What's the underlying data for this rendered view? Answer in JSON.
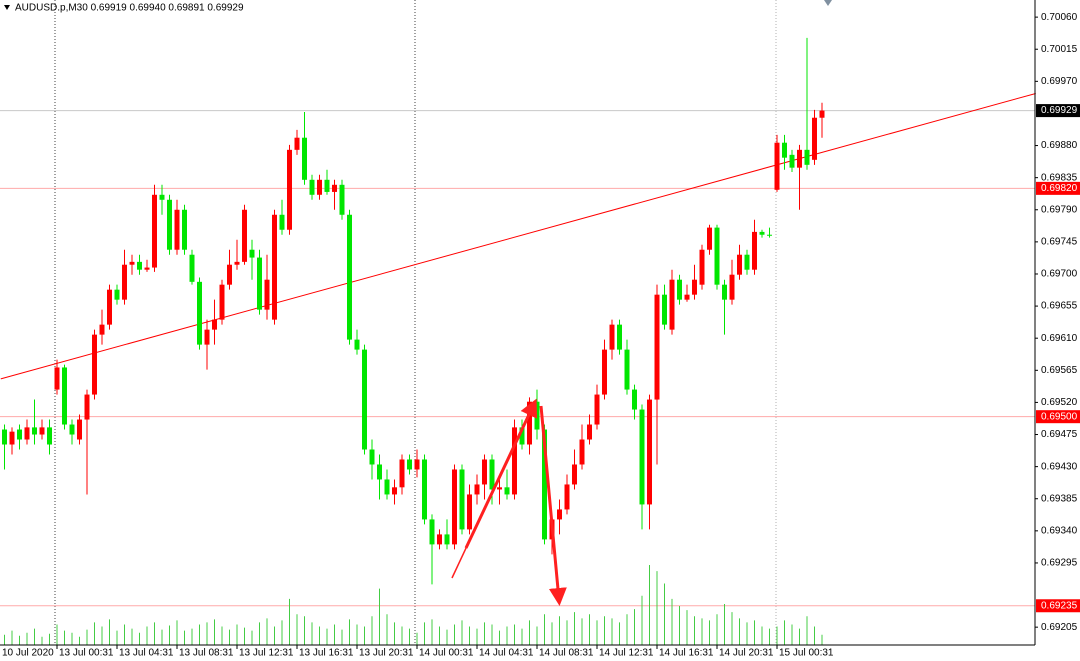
{
  "chart_data": {
    "type": "candlestick",
    "header": "AUDUSD.p,M30 0.69919 0.69940 0.69891 0.69929",
    "up_color": "#ff0000",
    "down_color": "#00e600",
    "volume_color": "#44cc44",
    "ylim": [
      0.6918,
      0.70084
    ],
    "yticks": [
      {
        "value": 0.7006,
        "label": "0.70060"
      },
      0.70015,
      {
        "value": 0.6997,
        "label": "0.69970"
      },
      {
        "value": 0.6988,
        "label": "0.69880"
      },
      0.69835,
      {
        "value": 0.6979,
        "label": "0.69790"
      },
      0.69745,
      {
        "value": 0.697,
        "label": "0.69700"
      },
      0.69655,
      {
        "value": 0.6961,
        "label": "0.69610"
      },
      0.69565,
      {
        "value": 0.6952,
        "label": "0.69520"
      },
      0.69475,
      {
        "value": 0.6943,
        "label": "0.69430"
      },
      0.69385,
      {
        "value": 0.6934,
        "label": "0.69340"
      },
      0.69295,
      0.69205
    ],
    "hlines": [
      {
        "value": 0.69929,
        "label": "0.69929",
        "line_color": "#c8c8c8",
        "box_color": "#000000"
      },
      {
        "value": 0.6982,
        "label": "0.69820",
        "line_color": "#ffaaaa",
        "box_color": "#ff0000"
      },
      {
        "value": 0.695,
        "label": "0.69500",
        "line_color": "#ffaaaa",
        "box_color": "#ff0000"
      },
      {
        "value": 0.69235,
        "label": "0.69235",
        "line_color": "#ffaaaa",
        "box_color": "#ff0000"
      }
    ],
    "trendline": {
      "x": [
        -0.5,
        137.5
      ],
      "y": [
        0.69553,
        0.69953
      ],
      "color": "#ff0000"
    },
    "categories": [
      "10 Jul 2020",
      null,
      null,
      null,
      null,
      null,
      null,
      "13 Jul 00:31",
      null,
      null,
      null,
      null,
      null,
      null,
      null,
      "13 Jul 04:31",
      null,
      null,
      null,
      null,
      null,
      null,
      null,
      "13 Jul 08:31",
      null,
      null,
      null,
      null,
      null,
      null,
      null,
      "13 Jul 12:31",
      null,
      null,
      null,
      null,
      null,
      null,
      null,
      "13 Jul 16:31",
      null,
      null,
      null,
      null,
      null,
      null,
      null,
      "13 Jul 20:31",
      null,
      null,
      null,
      null,
      null,
      null,
      null,
      "14 Jul 00:31",
      null,
      null,
      null,
      null,
      null,
      null,
      null,
      "14 Jul 04:31",
      null,
      null,
      null,
      null,
      null,
      null,
      null,
      "14 Jul 08:31",
      null,
      null,
      null,
      null,
      null,
      null,
      null,
      "14 Jul 12:31",
      null,
      null,
      null,
      null,
      null,
      null,
      null,
      "14 Jul 16:31",
      null,
      null,
      null,
      null,
      null,
      null,
      null,
      "14 Jul 20:31",
      null,
      null,
      null,
      null,
      null,
      null,
      null,
      "15 Jul 00:31",
      null,
      null,
      null,
      null,
      null,
      null
    ],
    "open": [
      0.69482,
      0.69461,
      0.69482,
      0.69468,
      0.69485,
      0.69475,
      0.69485,
      0.69538,
      0.69569,
      0.69489,
      0.69468,
      0.69496,
      0.69531,
      0.69615,
      0.69629,
      0.69678,
      0.69664,
      0.69713,
      0.69717,
      0.69706,
      0.69709,
      0.69811,
      0.69804,
      0.69734,
      0.6979,
      0.69727,
      0.69689,
      0.69601,
      0.69622,
      0.69636,
      0.69685,
      0.69713,
      0.69717,
      0.69734,
      0.69723,
      0.6965,
      0.69636,
      0.69783,
      0.69762,
      0.69874,
      0.69891,
      0.69832,
      0.69811,
      0.69832,
      0.69815,
      0.69825,
      0.69783,
      0.69608,
      0.69594,
      0.69454,
      0.69433,
      0.69412,
      0.69391,
      0.69401,
      0.6944,
      0.69426,
      0.6944,
      0.69356,
      0.69321,
      0.69335,
      0.69321,
      0.69426,
      0.69342,
      0.69391,
      0.69405,
      0.6944,
      0.69398,
      0.69401,
      0.69391,
      0.69485,
      0.69461,
      0.69521,
      0.69482,
      0.69328,
      0.69356,
      0.6937,
      0.69405,
      0.69433,
      0.69468,
      0.69489,
      0.69531,
      0.69594,
      0.69629,
      0.69594,
      0.69538,
      0.6951,
      0.69377,
      0.69524,
      0.69671,
      0.69622,
      0.69692,
      0.69664,
      0.69671,
      0.69685,
      0.69734,
      0.69765,
      0.69685,
      0.69664,
      0.69699,
      0.69727,
      0.69706,
      0.69759,
      0.69755,
      0.69818,
      0.69884,
      0.69867,
      0.69849,
      0.69874,
      0.6986,
      0.69919
    ],
    "high": [
      0.69489,
      0.69485,
      0.69489,
      0.69496,
      0.69524,
      0.69496,
      0.69496,
      0.6958,
      0.69573,
      0.69496,
      0.69503,
      0.69538,
      0.69622,
      0.6965,
      0.69685,
      0.69685,
      0.69734,
      0.69727,
      0.69727,
      0.6972,
      0.69825,
      0.69825,
      0.69811,
      0.69804,
      0.69797,
      0.69734,
      0.69695,
      0.69636,
      0.69664,
      0.69692,
      0.69734,
      0.69748,
      0.69797,
      0.69748,
      0.69734,
      0.69727,
      0.6979,
      0.69804,
      0.69881,
      0.69902,
      0.69927,
      0.69839,
      0.69839,
      0.69846,
      0.69832,
      0.69832,
      0.6979,
      0.69622,
      0.69601,
      0.69468,
      0.69447,
      0.69426,
      0.69412,
      0.69447,
      0.69447,
      0.69454,
      0.69447,
      0.69363,
      0.69342,
      0.69356,
      0.69433,
      0.69433,
      0.69405,
      0.69419,
      0.69447,
      0.69447,
      0.69412,
      0.69426,
      0.69496,
      0.69496,
      0.69527,
      0.69538,
      0.69489,
      0.69363,
      0.69384,
      0.69419,
      0.69454,
      0.69489,
      0.69503,
      0.69545,
      0.69608,
      0.69636,
      0.69636,
      0.69608,
      0.69545,
      0.69517,
      0.69531,
      0.69685,
      0.69685,
      0.69706,
      0.69699,
      0.69685,
      0.69713,
      0.69741,
      0.69769,
      0.69769,
      0.69692,
      0.6972,
      0.69741,
      0.69734,
      0.69776,
      0.69762,
      0.69765,
      0.69895,
      0.69895,
      0.69874,
      0.69881,
      0.70031,
      0.6993,
      0.6994
    ],
    "low": [
      0.69426,
      0.69447,
      0.69454,
      0.69461,
      0.69461,
      0.69468,
      0.69447,
      0.69531,
      0.69482,
      0.69461,
      0.69461,
      0.69391,
      0.69524,
      0.69601,
      0.69622,
      0.69657,
      0.69657,
      0.69699,
      0.69699,
      0.69703,
      0.69703,
      0.69783,
      0.69727,
      0.69727,
      0.69727,
      0.69685,
      0.69594,
      0.69566,
      0.69601,
      0.69629,
      0.69678,
      0.69706,
      0.69713,
      0.69692,
      0.69643,
      0.69636,
      0.69629,
      0.69755,
      0.69755,
      0.69867,
      0.69825,
      0.69804,
      0.69804,
      0.69811,
      0.6979,
      0.69776,
      0.69601,
      0.69587,
      0.69447,
      0.69412,
      0.69384,
      0.69384,
      0.69377,
      0.69391,
      0.69419,
      0.69415,
      0.69349,
      0.69265,
      0.69314,
      0.69314,
      0.69314,
      0.69335,
      0.69335,
      0.69377,
      0.69384,
      0.69377,
      0.69377,
      0.69384,
      0.69384,
      0.69454,
      0.69447,
      0.69468,
      0.69321,
      0.69307,
      0.69335,
      0.69363,
      0.69398,
      0.69426,
      0.69461,
      0.69482,
      0.69524,
      0.6958,
      0.69587,
      0.69531,
      0.69496,
      0.69342,
      0.69342,
      0.69433,
      0.69622,
      0.69615,
      0.69657,
      0.69661,
      0.69664,
      0.69678,
      0.69727,
      0.69678,
      0.69615,
      0.69657,
      0.69692,
      0.69699,
      0.69699,
      0.69751,
      0.69751,
      0.69815,
      0.69846,
      0.69843,
      0.6979,
      0.69846,
      0.69853,
      0.69891
    ],
    "close": [
      0.69461,
      0.69479,
      0.69468,
      0.69485,
      0.69475,
      0.69485,
      0.69461,
      0.69569,
      0.69489,
      0.69475,
      0.69496,
      0.69531,
      0.69615,
      0.69629,
      0.69678,
      0.69664,
      0.69713,
      0.69717,
      0.69706,
      0.69709,
      0.69811,
      0.69804,
      0.69734,
      0.6979,
      0.69734,
      0.69689,
      0.69601,
      0.69622,
      0.69636,
      0.69685,
      0.69713,
      0.69717,
      0.6979,
      0.69723,
      0.6965,
      0.69692,
      0.69783,
      0.69762,
      0.69874,
      0.69891,
      0.69832,
      0.69811,
      0.69832,
      0.69815,
      0.69825,
      0.69783,
      0.69608,
      0.69594,
      0.69454,
      0.69433,
      0.69412,
      0.69391,
      0.69401,
      0.6944,
      0.69426,
      0.6944,
      0.69356,
      0.69321,
      0.69335,
      0.69321,
      0.69426,
      0.69342,
      0.69391,
      0.69405,
      0.6944,
      0.69398,
      0.69401,
      0.69391,
      0.69485,
      0.69461,
      0.69521,
      0.69482,
      0.69328,
      0.69356,
      0.6937,
      0.69405,
      0.69433,
      0.69468,
      0.69489,
      0.69531,
      0.69594,
      0.69629,
      0.69594,
      0.69538,
      0.6951,
      0.69377,
      0.69524,
      0.69671,
      0.69629,
      0.69692,
      0.69664,
      0.69671,
      0.69692,
      0.69734,
      0.69765,
      0.69685,
      0.69664,
      0.69699,
      0.69727,
      0.69706,
      0.69759,
      0.69755,
      0.69754,
      0.69884,
      0.69863,
      0.69849,
      0.69874,
      0.69853,
      0.69919,
      0.69929
    ],
    "volumes": [
      10,
      14,
      9,
      12,
      16,
      8,
      11,
      20,
      14,
      12,
      8,
      15,
      22,
      18,
      25,
      14,
      20,
      16,
      12,
      18,
      22,
      15,
      19,
      24,
      14,
      16,
      20,
      22,
      25,
      18,
      15,
      20,
      17,
      14,
      22,
      26,
      18,
      24,
      45,
      30,
      28,
      22,
      18,
      16,
      20,
      15,
      25,
      20,
      18,
      28,
      55,
      30,
      22,
      18,
      16,
      12,
      22,
      25,
      18,
      15,
      20,
      24,
      18,
      16,
      22,
      20,
      14,
      18,
      20,
      16,
      24,
      18,
      30,
      22,
      28,
      24,
      32,
      26,
      30,
      24,
      28,
      26,
      22,
      30,
      35,
      48,
      78,
      72,
      60,
      45,
      38,
      34,
      28,
      26,
      24,
      30,
      40,
      32,
      26,
      22,
      24,
      18,
      16,
      18,
      24,
      20,
      16,
      28,
      18,
      10
    ]
  }
}
